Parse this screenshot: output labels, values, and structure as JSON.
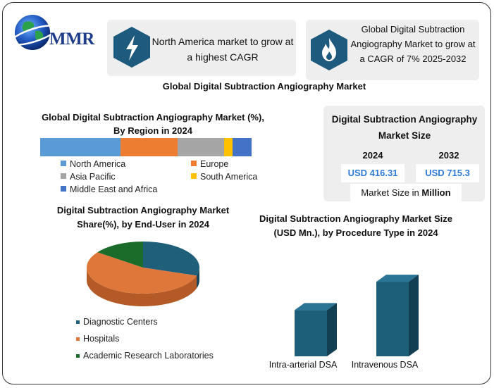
{
  "brand": {
    "logo_text": "MMR"
  },
  "info_boxes": [
    {
      "icon": "lightning-icon",
      "text": "North America market to grow at a highest CAGR"
    },
    {
      "icon": "flame-icon",
      "text": "Global Digital Subtraction Angiography Market to grow at a CAGR of 7% 2025-2032"
    }
  ],
  "main_title": "Global Digital Subtraction Angiography Market",
  "market_size": {
    "title": "Digital Subtraction Angiography Market Size",
    "year_1": "2024",
    "year_2": "2032",
    "value_1": "USD 416.31",
    "value_2": "USD 715.3",
    "unit_prefix": "Market Size in",
    "unit_bold": "Million"
  },
  "colors": {
    "north_america": "#5b9bd5",
    "europe": "#ed7d31",
    "asia_pacific": "#a5a5a5",
    "south_america": "#ffc000",
    "middle_east_africa": "#4472c4",
    "diagnostic_centers": "#1f5f7a",
    "hospitals": "#e0773a",
    "academic": "#1b6b2a",
    "procedure_bar": "#1d5e78"
  },
  "chart_data": [
    {
      "type": "bar",
      "orientation": "horizontal-stacked-100",
      "title": "Global Digital Subtraction Angiography Market (%), By Region in 2024",
      "series": [
        {
          "name": "North America",
          "values": [
            38
          ]
        },
        {
          "name": "Europe",
          "values": [
            27
          ]
        },
        {
          "name": "Asia Pacific",
          "values": [
            22
          ]
        },
        {
          "name": "South America",
          "values": [
            4
          ]
        },
        {
          "name": "Middle East and Africa",
          "values": [
            9
          ]
        }
      ],
      "legend": "bottom"
    },
    {
      "type": "pie",
      "title": "Digital Subtraction Angiography Market Share(%), by End-User in 2024",
      "categories": [
        "Diagnostic Centers",
        "Hospitals",
        "Academic Research Laboratories"
      ],
      "values": [
        30,
        55,
        15
      ],
      "legend": "bottom"
    },
    {
      "type": "bar",
      "title": "Digital Subtraction Angiography Market Size (USD Mn.), by Procedure Type in 2024",
      "categories": [
        "Intra-arterial DSA",
        "Intravenous DSA"
      ],
      "values": [
        150,
        230
      ],
      "ylim": [
        0,
        250
      ]
    }
  ]
}
